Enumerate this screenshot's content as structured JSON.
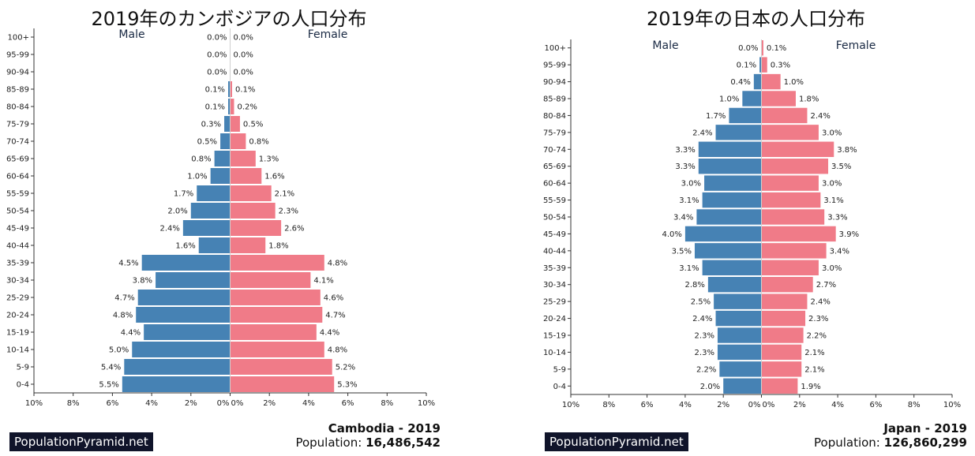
{
  "charts": [
    {
      "title": "2019年のカンボジアの人口分布",
      "legend": {
        "male": "Male",
        "female": "Female"
      },
      "brand": "PopulationPyramid.net",
      "country_year": "Cambodia - 2019",
      "population_label": "Population:",
      "population_value": "16,486,542"
    },
    {
      "title": "2019年の日本の人口分布",
      "legend": {
        "male": "Male",
        "female": "Female"
      },
      "brand": "PopulationPyramid.net",
      "country_year": "Japan - 2019",
      "population_label": "Population:",
      "population_value": "126,860,299"
    }
  ],
  "chart_data": [
    {
      "type": "bar",
      "orientation": "horizontal-pyramid",
      "title": "2019年のカンボジアの人口分布",
      "categories": [
        "100+",
        "95-99",
        "90-94",
        "85-89",
        "80-84",
        "75-79",
        "70-74",
        "65-69",
        "60-64",
        "55-59",
        "50-54",
        "45-49",
        "40-44",
        "35-39",
        "30-34",
        "25-29",
        "20-24",
        "15-19",
        "10-14",
        "5-9",
        "0-4"
      ],
      "series": [
        {
          "name": "Male",
          "color": "#4682b4",
          "values": [
            0.0,
            0.0,
            0.0,
            0.1,
            0.1,
            0.3,
            0.5,
            0.8,
            1.0,
            1.7,
            2.0,
            2.4,
            1.6,
            4.5,
            3.8,
            4.7,
            4.8,
            4.4,
            5.0,
            5.4,
            5.5
          ],
          "labels": [
            "0.0%",
            "0.0%",
            "0.0%",
            "0.1%",
            "0.1%",
            "0.3%",
            "0.5%",
            "0.8%",
            "1.0%",
            "1.7%",
            "2.0%",
            "2.4%",
            "1.6%",
            "4.5%",
            "3.8%",
            "4.7%",
            "4.8%",
            "4.4%",
            "5.0%",
            "5.4%",
            "5.5%"
          ]
        },
        {
          "name": "Female",
          "color": "#f07b88",
          "values": [
            0.0,
            0.0,
            0.0,
            0.1,
            0.2,
            0.5,
            0.8,
            1.3,
            1.6,
            2.1,
            2.3,
            2.6,
            1.8,
            4.8,
            4.1,
            4.6,
            4.7,
            4.4,
            4.8,
            5.2,
            5.3
          ],
          "labels": [
            "0.0%",
            "0.0%",
            "0.0%",
            "0.1%",
            "0.2%",
            "0.5%",
            "0.8%",
            "1.3%",
            "1.6%",
            "2.1%",
            "2.3%",
            "2.6%",
            "1.8%",
            "4.8%",
            "4.1%",
            "4.6%",
            "4.7%",
            "4.4%",
            "4.8%",
            "5.2%",
            "5.3%"
          ]
        }
      ],
      "xlim": [
        -10,
        10
      ],
      "xticks": [
        "10%",
        "8%",
        "6%",
        "4%",
        "2%",
        "0%",
        "0%",
        "2%",
        "4%",
        "6%",
        "8%",
        "10%"
      ]
    },
    {
      "type": "bar",
      "orientation": "horizontal-pyramid",
      "title": "2019年の日本の人口分布",
      "categories": [
        "100+",
        "95-99",
        "90-94",
        "85-89",
        "80-84",
        "75-79",
        "70-74",
        "65-69",
        "60-64",
        "55-59",
        "50-54",
        "45-49",
        "40-44",
        "35-39",
        "30-34",
        "25-29",
        "20-24",
        "15-19",
        "10-14",
        "5-9",
        "0-4"
      ],
      "series": [
        {
          "name": "Male",
          "color": "#4682b4",
          "values": [
            0.0,
            0.1,
            0.4,
            1.0,
            1.7,
            2.4,
            3.3,
            3.3,
            3.0,
            3.1,
            3.4,
            4.0,
            3.5,
            3.1,
            2.8,
            2.5,
            2.4,
            2.3,
            2.3,
            2.2,
            2.0
          ],
          "labels": [
            "0.0%",
            "0.1%",
            "0.4%",
            "1.0%",
            "1.7%",
            "2.4%",
            "3.3%",
            "3.3%",
            "3.0%",
            "3.1%",
            "3.4%",
            "4.0%",
            "3.5%",
            "3.1%",
            "2.8%",
            "2.5%",
            "2.4%",
            "2.3%",
            "2.3%",
            "2.2%",
            "2.0%"
          ]
        },
        {
          "name": "Female",
          "color": "#f07b88",
          "values": [
            0.1,
            0.3,
            1.0,
            1.8,
            2.4,
            3.0,
            3.8,
            3.5,
            3.0,
            3.1,
            3.3,
            3.9,
            3.4,
            3.0,
            2.7,
            2.4,
            2.3,
            2.2,
            2.1,
            2.1,
            1.9
          ],
          "labels": [
            "0.1%",
            "0.3%",
            "1.0%",
            "1.8%",
            "2.4%",
            "3.0%",
            "3.8%",
            "3.5%",
            "3.0%",
            "3.1%",
            "3.3%",
            "3.9%",
            "3.4%",
            "3.0%",
            "2.7%",
            "2.4%",
            "2.3%",
            "2.2%",
            "2.1%",
            "2.1%",
            "1.9%"
          ]
        }
      ],
      "xlim": [
        -10,
        10
      ],
      "xticks": [
        "10%",
        "8%",
        "6%",
        "4%",
        "2%",
        "0%",
        "0%",
        "2%",
        "4%",
        "6%",
        "8%",
        "10%"
      ]
    }
  ]
}
